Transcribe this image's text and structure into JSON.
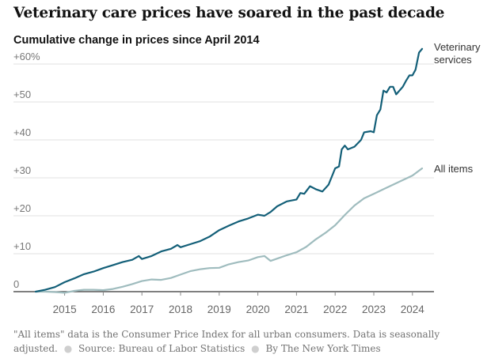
{
  "title": "Veterinary care prices have soared in the past decade",
  "subtitle": "Cumulative change in prices since April 2014",
  "footnote": {
    "note": "\"All items\" data is the Consumer Price Index for all urban consumers. Data is seasonally adjusted.",
    "source": "Source: Bureau of Labor Statistics",
    "credit": "By The New York Times"
  },
  "chart_data": {
    "type": "line",
    "title": "Veterinary care prices have soared in the past decade",
    "subtitle": "Cumulative change in prices since April 2014",
    "xlabel": "",
    "ylabel": "",
    "x_ticks": [
      "2015",
      "2016",
      "2017",
      "2018",
      "2019",
      "2020",
      "2021",
      "2022",
      "2023",
      "2024"
    ],
    "y_ticks": [
      0,
      10,
      20,
      30,
      40,
      50,
      60
    ],
    "y_tick_labels": [
      "0",
      "+10",
      "+20",
      "+30",
      "+40",
      "+50",
      "+60%"
    ],
    "xlim": [
      2014.25,
      2024.4
    ],
    "ylim": [
      0,
      60
    ],
    "grid": "horizontal",
    "legend": "direct labels at line ends",
    "series": [
      {
        "name": "Veterinary services",
        "label_lines": [
          "Veterinary",
          "services"
        ],
        "color": "#135f78",
        "points": [
          [
            2014.25,
            0
          ],
          [
            2014.5,
            0.5
          ],
          [
            2014.75,
            1.2
          ],
          [
            2015.0,
            2.5
          ],
          [
            2015.25,
            3.5
          ],
          [
            2015.5,
            4.6
          ],
          [
            2015.75,
            5.3
          ],
          [
            2016.0,
            6.2
          ],
          [
            2016.25,
            7.0
          ],
          [
            2016.5,
            7.8
          ],
          [
            2016.75,
            8.4
          ],
          [
            2016.92,
            9.4
          ],
          [
            2017.0,
            8.6
          ],
          [
            2017.25,
            9.4
          ],
          [
            2017.5,
            10.6
          ],
          [
            2017.75,
            11.3
          ],
          [
            2017.92,
            12.3
          ],
          [
            2018.0,
            11.7
          ],
          [
            2018.25,
            12.5
          ],
          [
            2018.5,
            13.3
          ],
          [
            2018.75,
            14.5
          ],
          [
            2019.0,
            16.2
          ],
          [
            2019.25,
            17.4
          ],
          [
            2019.5,
            18.5
          ],
          [
            2019.75,
            19.3
          ],
          [
            2020.0,
            20.3
          ],
          [
            2020.17,
            20.0
          ],
          [
            2020.33,
            21.0
          ],
          [
            2020.5,
            22.5
          ],
          [
            2020.75,
            23.8
          ],
          [
            2021.0,
            24.3
          ],
          [
            2021.1,
            26.0
          ],
          [
            2021.2,
            25.8
          ],
          [
            2021.35,
            27.8
          ],
          [
            2021.5,
            27.0
          ],
          [
            2021.67,
            26.4
          ],
          [
            2021.83,
            28.2
          ],
          [
            2022.0,
            32.5
          ],
          [
            2022.1,
            33.0
          ],
          [
            2022.17,
            37.5
          ],
          [
            2022.25,
            38.5
          ],
          [
            2022.33,
            37.5
          ],
          [
            2022.5,
            38.2
          ],
          [
            2022.67,
            40.0
          ],
          [
            2022.75,
            42.0
          ],
          [
            2022.92,
            42.3
          ],
          [
            2023.0,
            42.0
          ],
          [
            2023.08,
            46.5
          ],
          [
            2023.17,
            48.0
          ],
          [
            2023.25,
            53.0
          ],
          [
            2023.33,
            52.5
          ],
          [
            2023.42,
            54.0
          ],
          [
            2023.5,
            54.0
          ],
          [
            2023.58,
            52.0
          ],
          [
            2023.75,
            54.0
          ],
          [
            2023.83,
            55.5
          ],
          [
            2023.92,
            57.0
          ],
          [
            2024.0,
            57.0
          ],
          [
            2024.08,
            58.5
          ],
          [
            2024.17,
            63.0
          ],
          [
            2024.25,
            64.0
          ]
        ]
      },
      {
        "name": "All items",
        "label_lines": [
          "All items"
        ],
        "color": "#9fbcbe",
        "points": [
          [
            2014.25,
            0
          ],
          [
            2014.5,
            0
          ],
          [
            2014.75,
            -0.1
          ],
          [
            2015.0,
            -0.3
          ],
          [
            2015.25,
            0.2
          ],
          [
            2015.5,
            0.5
          ],
          [
            2015.75,
            0.5
          ],
          [
            2016.0,
            0.4
          ],
          [
            2016.25,
            0.7
          ],
          [
            2016.5,
            1.3
          ],
          [
            2016.75,
            2.0
          ],
          [
            2017.0,
            2.8
          ],
          [
            2017.25,
            3.2
          ],
          [
            2017.5,
            3.1
          ],
          [
            2017.75,
            3.6
          ],
          [
            2018.0,
            4.5
          ],
          [
            2018.25,
            5.4
          ],
          [
            2018.5,
            5.9
          ],
          [
            2018.75,
            6.2
          ],
          [
            2019.0,
            6.3
          ],
          [
            2019.25,
            7.2
          ],
          [
            2019.5,
            7.8
          ],
          [
            2019.75,
            8.2
          ],
          [
            2020.0,
            9.1
          ],
          [
            2020.17,
            9.4
          ],
          [
            2020.33,
            8.1
          ],
          [
            2020.5,
            8.7
          ],
          [
            2020.75,
            9.6
          ],
          [
            2021.0,
            10.4
          ],
          [
            2021.25,
            11.8
          ],
          [
            2021.5,
            13.8
          ],
          [
            2021.75,
            15.5
          ],
          [
            2022.0,
            17.5
          ],
          [
            2022.25,
            20.2
          ],
          [
            2022.5,
            22.7
          ],
          [
            2022.75,
            24.6
          ],
          [
            2023.0,
            25.8
          ],
          [
            2023.25,
            27.0
          ],
          [
            2023.5,
            28.2
          ],
          [
            2023.75,
            29.4
          ],
          [
            2024.0,
            30.6
          ],
          [
            2024.25,
            32.5
          ]
        ]
      }
    ]
  }
}
